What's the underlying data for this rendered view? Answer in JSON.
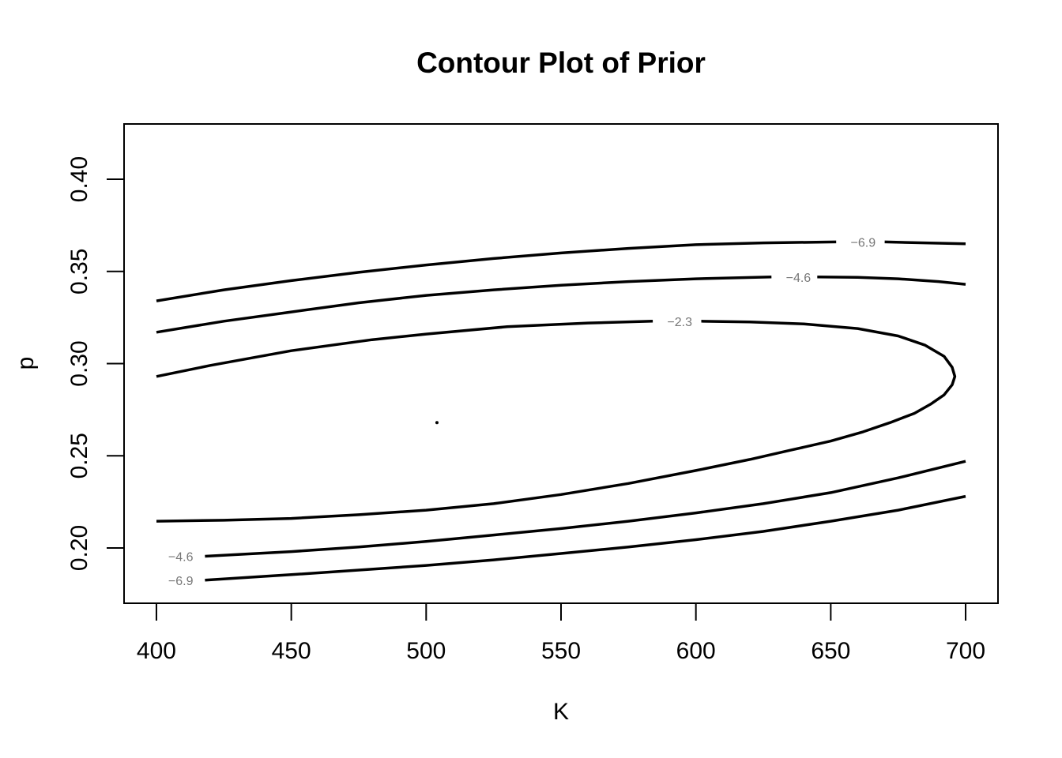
{
  "chart_data": {
    "type": "contour",
    "title": "Contour Plot of Prior",
    "xlabel": "K",
    "ylabel": "p",
    "xlim": [
      388,
      712
    ],
    "ylim": [
      0.17,
      0.43
    ],
    "x_ticks": [
      400,
      450,
      500,
      550,
      600,
      650,
      700
    ],
    "x_tick_labels": [
      "400",
      "450",
      "500",
      "550",
      "600",
      "650",
      "700"
    ],
    "y_ticks": [
      0.2,
      0.25,
      0.3,
      0.35,
      0.4
    ],
    "y_tick_labels": [
      "0.20",
      "0.25",
      "0.30",
      "0.35",
      "0.40"
    ],
    "grid": false,
    "legend": "none",
    "center_point": {
      "x": 504,
      "y": 0.268
    },
    "contours": [
      {
        "level": -2.3,
        "label": "−2.3",
        "label_at": {
          "x": 594,
          "y": 0.323
        },
        "label_gap": [
          584,
          602
        ],
        "points": [
          [
            400,
            0.293
          ],
          [
            420,
            0.299
          ],
          [
            450,
            0.307
          ],
          [
            480,
            0.313
          ],
          [
            500,
            0.316
          ],
          [
            530,
            0.32
          ],
          [
            560,
            0.322
          ],
          [
            584,
            0.323
          ],
          [
            602,
            0.323
          ],
          [
            620,
            0.3226
          ],
          [
            640,
            0.3215
          ],
          [
            660,
            0.319
          ],
          [
            675,
            0.315
          ],
          [
            685,
            0.31
          ],
          [
            692,
            0.304
          ],
          [
            695,
            0.298
          ],
          [
            696,
            0.293
          ],
          [
            695,
            0.2885
          ],
          [
            692,
            0.283
          ],
          [
            687,
            0.278
          ],
          [
            681,
            0.273
          ],
          [
            672,
            0.268
          ],
          [
            662,
            0.263
          ],
          [
            650,
            0.258
          ],
          [
            635,
            0.253
          ],
          [
            620,
            0.248
          ],
          [
            600,
            0.242
          ],
          [
            575,
            0.235
          ],
          [
            550,
            0.229
          ],
          [
            525,
            0.224
          ],
          [
            500,
            0.2205
          ],
          [
            475,
            0.218
          ],
          [
            450,
            0.216
          ],
          [
            425,
            0.215
          ],
          [
            400,
            0.2145
          ]
        ]
      },
      {
        "level": -4.6,
        "label": "−4.6",
        "label_at": {
          "x": 638,
          "y": 0.347
        },
        "label_gap": [
          628,
          645
        ],
        "points": [
          [
            400,
            0.317
          ],
          [
            425,
            0.323
          ],
          [
            450,
            0.328
          ],
          [
            475,
            0.333
          ],
          [
            500,
            0.337
          ],
          [
            525,
            0.34
          ],
          [
            550,
            0.3425
          ],
          [
            575,
            0.3445
          ],
          [
            600,
            0.346
          ],
          [
            628,
            0.347
          ],
          [
            645,
            0.347
          ],
          [
            660,
            0.3468
          ],
          [
            675,
            0.346
          ],
          [
            690,
            0.3445
          ],
          [
            700,
            0.343
          ]
        ]
      },
      {
        "level": -4.6,
        "label": "−4.6",
        "label_at": {
          "x": 409,
          "y": 0.1955
        },
        "label_gap": [
          400,
          418
        ],
        "points": [
          [
            418,
            0.1955
          ],
          [
            450,
            0.198
          ],
          [
            475,
            0.2005
          ],
          [
            500,
            0.2035
          ],
          [
            525,
            0.207
          ],
          [
            550,
            0.2105
          ],
          [
            575,
            0.2145
          ],
          [
            600,
            0.219
          ],
          [
            625,
            0.224
          ],
          [
            650,
            0.23
          ],
          [
            675,
            0.238
          ],
          [
            700,
            0.247
          ]
        ]
      },
      {
        "level": -6.9,
        "label": "−6.9",
        "label_at": {
          "x": 662,
          "y": 0.366
        },
        "label_gap": [
          652,
          670
        ],
        "points": [
          [
            400,
            0.334
          ],
          [
            425,
            0.34
          ],
          [
            450,
            0.345
          ],
          [
            475,
            0.3495
          ],
          [
            500,
            0.3535
          ],
          [
            525,
            0.357
          ],
          [
            550,
            0.36
          ],
          [
            575,
            0.3625
          ],
          [
            600,
            0.3645
          ],
          [
            625,
            0.3655
          ],
          [
            652,
            0.366
          ],
          [
            670,
            0.366
          ],
          [
            685,
            0.3655
          ],
          [
            700,
            0.365
          ]
        ]
      },
      {
        "level": -6.9,
        "label": "−6.9",
        "label_at": {
          "x": 409,
          "y": 0.1825
        },
        "label_gap": [
          400,
          418
        ],
        "points": [
          [
            418,
            0.1825
          ],
          [
            450,
            0.1855
          ],
          [
            475,
            0.188
          ],
          [
            500,
            0.1905
          ],
          [
            525,
            0.1935
          ],
          [
            550,
            0.197
          ],
          [
            575,
            0.2005
          ],
          [
            600,
            0.2045
          ],
          [
            625,
            0.209
          ],
          [
            650,
            0.2145
          ],
          [
            675,
            0.2205
          ],
          [
            700,
            0.228
          ]
        ]
      }
    ]
  }
}
